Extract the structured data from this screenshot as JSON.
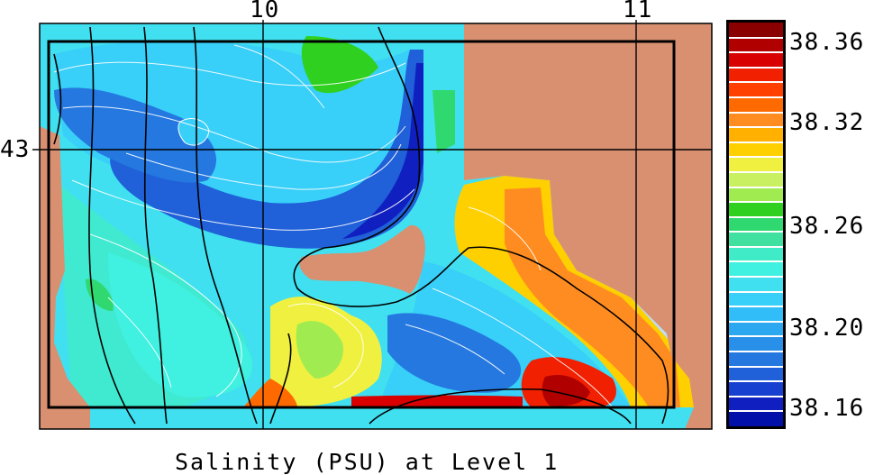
{
  "title": "Salinity (PSU) at Level 1",
  "lon_ticks": [
    "10",
    "11"
  ],
  "lat_ticks": [
    "43"
  ],
  "colorbar": {
    "tick_labels": [
      "38.36",
      "38.32",
      "38.26",
      "38.20",
      "38.16"
    ],
    "colors_top_to_bottom": [
      "#8a0000",
      "#b00000",
      "#d80000",
      "#f02000",
      "#ff4000",
      "#ff6a00",
      "#ff8c20",
      "#ffb000",
      "#ffd000",
      "#f0f040",
      "#c8f060",
      "#a0ec50",
      "#30d020",
      "#30d870",
      "#40e0a0",
      "#40ecc8",
      "#40f0e0",
      "#40e0f0",
      "#38cff8",
      "#30bdf8",
      "#2ca8f0",
      "#2890e8",
      "#2478e0",
      "#2060d8",
      "#1840d0",
      "#1020c0",
      "#0010a8"
    ]
  },
  "colors": {
    "land": "#d89070",
    "outside": "#c0dcf8",
    "frame": "#000000"
  }
}
